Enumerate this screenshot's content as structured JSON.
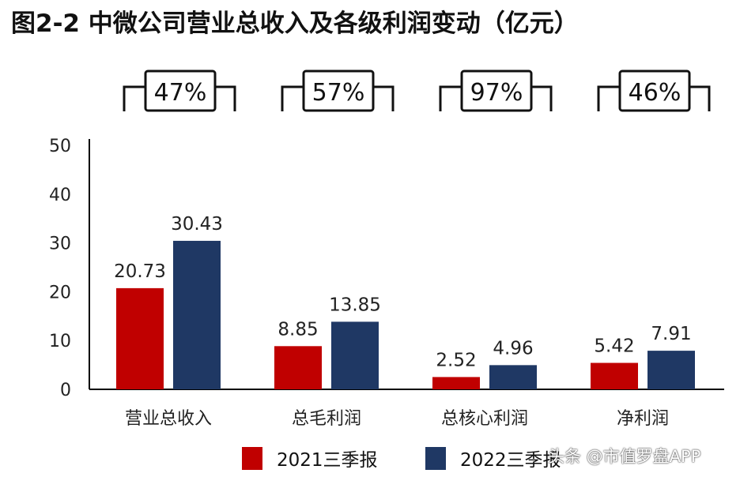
{
  "chart_data": {
    "type": "bar",
    "title": "图2-2 中微公司营业总收入及各级利润变动（亿元）",
    "categories": [
      "营业总收入",
      "总毛利润",
      "总核心利润",
      "净利润"
    ],
    "series": [
      {
        "name": "2021三季报",
        "values": [
          20.73,
          8.85,
          2.52,
          5.42
        ],
        "color": "#c00000"
      },
      {
        "name": "2022三季报",
        "values": [
          30.43,
          13.85,
          4.96,
          7.91
        ],
        "color": "#1f3864"
      }
    ],
    "growth_labels": [
      "47%",
      "57%",
      "97%",
      "46%"
    ],
    "ylim": [
      0,
      50
    ],
    "yticks": [
      0,
      10,
      20,
      30,
      40,
      50
    ],
    "xlabel": "",
    "ylabel": "",
    "grid": false,
    "legend_position": "bottom"
  },
  "watermark": "头条 @市值罗盘APP"
}
